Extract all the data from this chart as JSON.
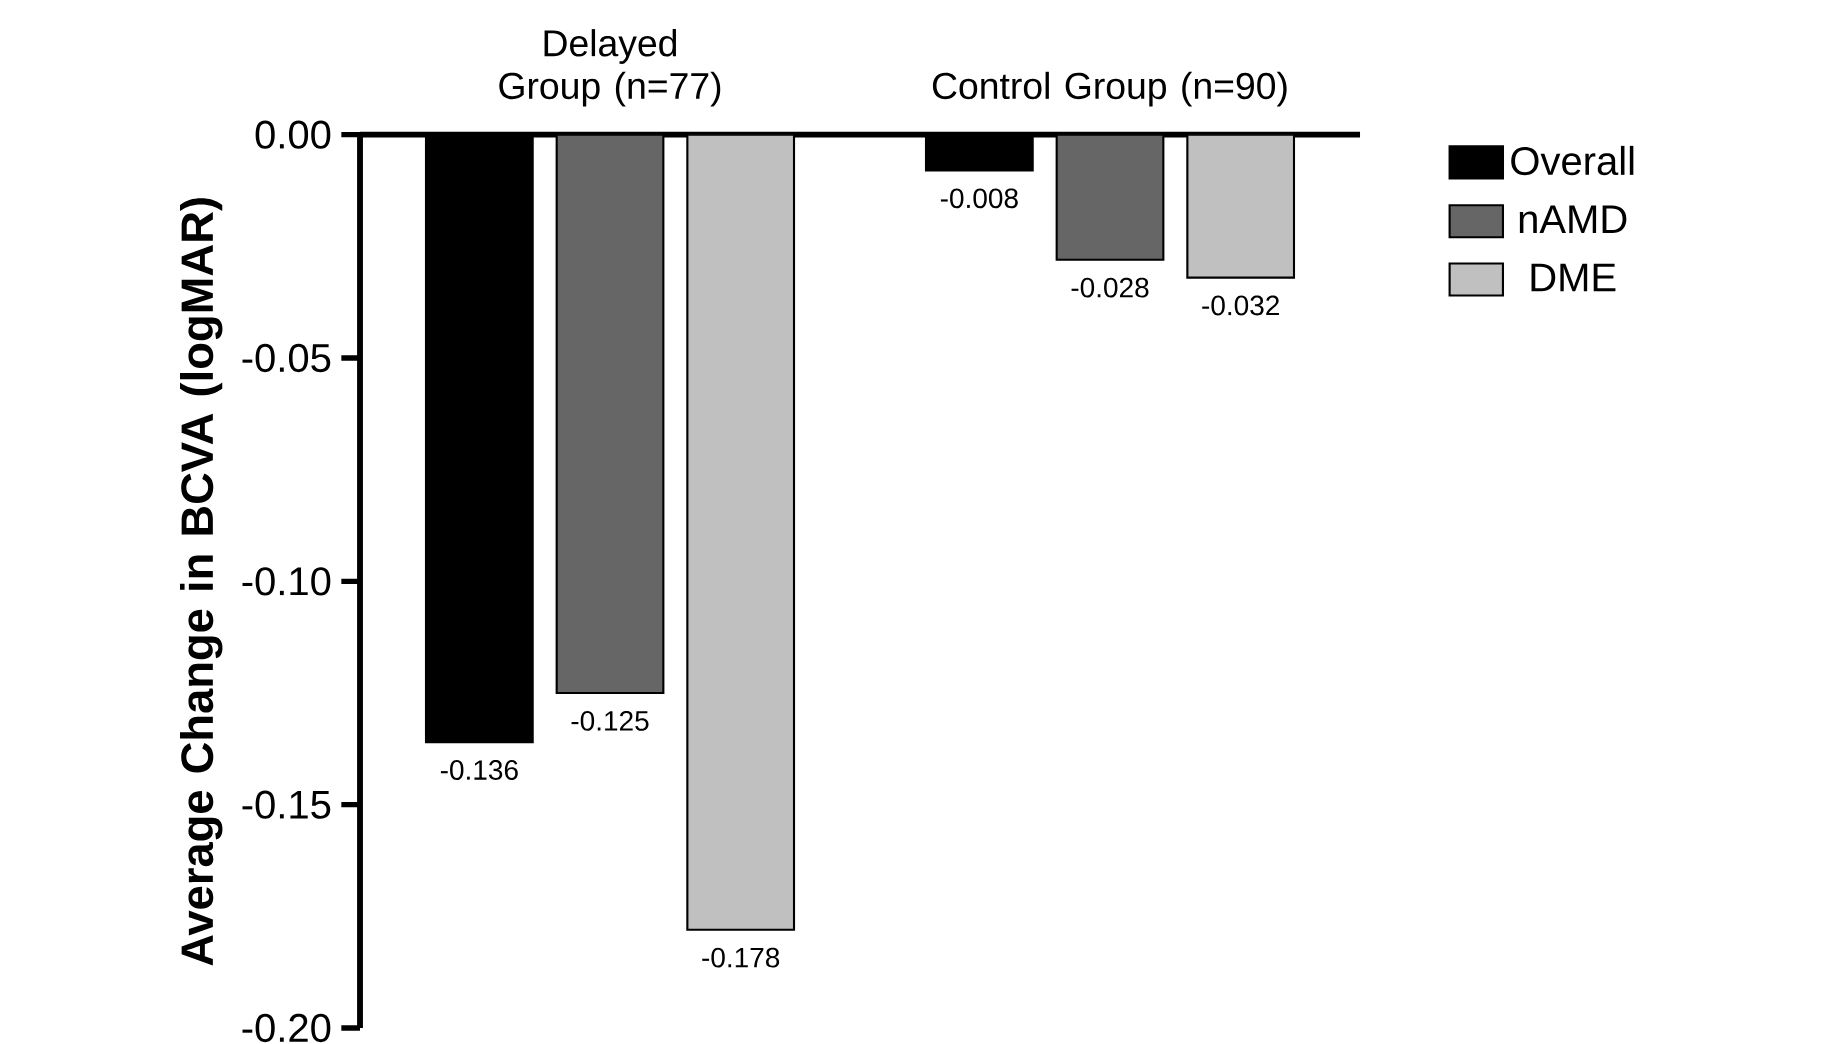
{
  "chart_data": {
    "type": "bar",
    "ylabel": "Average Change in BCVA (logMAR)",
    "categories": [
      "Delayed Group (n=77)",
      "Control Group (n=90)"
    ],
    "series": [
      {
        "name": "Overall",
        "color": "#000000",
        "values": [
          -0.136,
          -0.008
        ]
      },
      {
        "name": "nAMD",
        "color": "#666666",
        "values": [
          -0.125,
          -0.028
        ]
      },
      {
        "name": "DME",
        "color": "#c0c0c0",
        "values": [
          -0.178,
          -0.032
        ]
      }
    ],
    "ylim": [
      -0.2,
      0
    ],
    "yticks": [
      {
        "value": -0.2,
        "label": "-0.20"
      },
      {
        "value": -0.15,
        "label": "-0.15"
      },
      {
        "value": -0.1,
        "label": "-0.10"
      },
      {
        "value": -0.05,
        "label": "-0.05"
      },
      {
        "value": 0,
        "label": "0.00"
      }
    ],
    "data_labels": true,
    "legend": "top right"
  }
}
